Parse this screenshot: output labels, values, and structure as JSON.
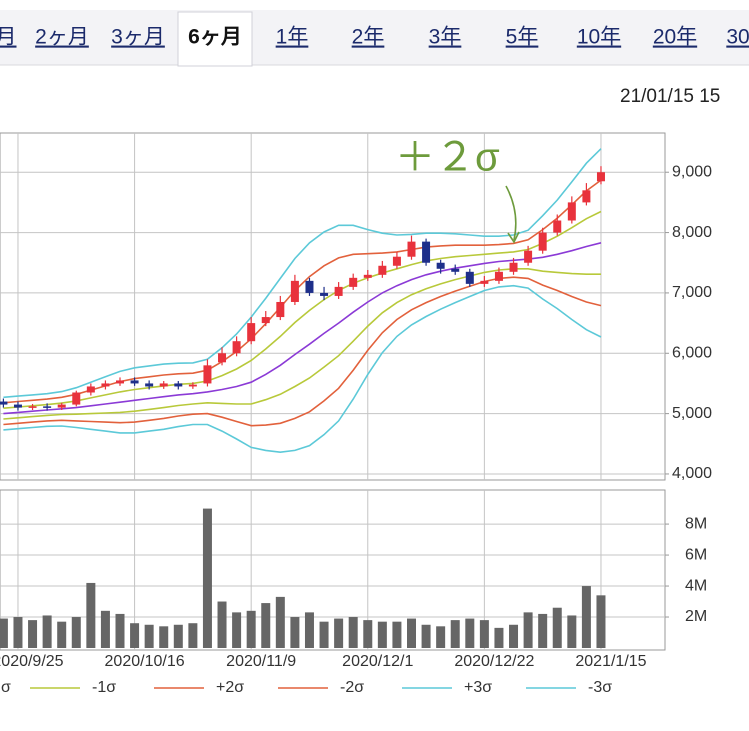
{
  "tabs": {
    "items": [
      "月",
      "2ヶ月",
      "3ヶ月",
      "6ヶ月",
      "1年",
      "2年",
      "3年",
      "5年",
      "10年",
      "20年",
      "30"
    ],
    "selected": 3
  },
  "timestamp": "21/01/15 15",
  "chart_data": {
    "type": "candlestick",
    "annotation": "＋２σ",
    "categories": [
      null,
      "2020/9/25",
      null,
      null,
      null,
      null,
      null,
      null,
      null,
      "2020/10/16",
      null,
      null,
      null,
      null,
      null,
      null,
      null,
      "2020/11/9",
      null,
      null,
      null,
      null,
      null,
      null,
      null,
      "2020/12/1",
      null,
      null,
      null,
      null,
      null,
      null,
      null,
      "2020/12/22",
      null,
      null,
      null,
      null,
      null,
      null,
      null,
      "2021/1/15"
    ],
    "open": [
      5200,
      5150,
      5100,
      5120,
      5100,
      5150,
      5350,
      5450,
      5500,
      5550,
      5500,
      5450,
      5500,
      5450,
      5500,
      5850,
      6000,
      6200,
      6500,
      6600,
      6850,
      7200,
      7000,
      6950,
      7100,
      7250,
      7300,
      7450,
      7600,
      7850,
      7500,
      7400,
      7350,
      7150,
      7200,
      7350,
      7500,
      7700,
      8000,
      8200,
      8500,
      8850
    ],
    "high": [
      5250,
      5200,
      5160,
      5170,
      5180,
      5380,
      5500,
      5550,
      5600,
      5600,
      5550,
      5540,
      5540,
      5520,
      5900,
      6100,
      6280,
      6600,
      6700,
      6950,
      7300,
      7250,
      7100,
      7180,
      7320,
      7380,
      7530,
      7680,
      7950,
      7900,
      7550,
      7470,
      7400,
      7280,
      7420,
      7580,
      7780,
      8080,
      8300,
      8600,
      8820,
      9100
    ],
    "low": [
      5100,
      5050,
      5060,
      5050,
      5060,
      5120,
      5300,
      5400,
      5460,
      5460,
      5400,
      5410,
      5400,
      5410,
      5450,
      5800,
      5950,
      6150,
      6450,
      6550,
      6800,
      6950,
      6880,
      6900,
      7050,
      7200,
      7250,
      7400,
      7550,
      7450,
      7320,
      7300,
      7100,
      7100,
      7150,
      7300,
      7450,
      7650,
      7950,
      8150,
      8450,
      8800
    ],
    "close": [
      5150,
      5100,
      5120,
      5100,
      5150,
      5350,
      5450,
      5500,
      5550,
      5500,
      5450,
      5500,
      5450,
      5480,
      5800,
      6000,
      6200,
      6500,
      6600,
      6850,
      7200,
      7000,
      6950,
      7100,
      7250,
      7300,
      7450,
      7600,
      7850,
      7500,
      7400,
      7350,
      7150,
      7200,
      7350,
      7500,
      7700,
      8000,
      8200,
      8500,
      8700,
      9000
    ],
    "up_color": "#e8323c",
    "down_color": "#1e2f8a",
    "ylim": [
      3900,
      9650
    ],
    "yticks": [
      {
        "value": 4000,
        "label": "4,000"
      },
      {
        "value": 5000,
        "label": "5,000"
      },
      {
        "value": 6000,
        "label": "6,000"
      },
      {
        "value": 7000,
        "label": "7,000"
      },
      {
        "value": 8000,
        "label": "8,000"
      },
      {
        "value": 9000,
        "label": "9,000"
      }
    ],
    "grid": true,
    "legend": "bottom",
    "series": [
      {
        "color": "#8b3ad6",
        "values": [
          5000,
          5020,
          5040,
          5060,
          5080,
          5100,
          5130,
          5160,
          5190,
          5220,
          5250,
          5280,
          5310,
          5330,
          5360,
          5400,
          5450,
          5520,
          5650,
          5800,
          5980,
          6150,
          6330,
          6500,
          6680,
          6850,
          7000,
          7120,
          7220,
          7300,
          7360,
          7410,
          7450,
          7490,
          7520,
          7540,
          7560,
          7590,
          7640,
          7700,
          7770,
          7830
        ]
      },
      {
        "name": "σ",
        "color": "#b8c93a",
        "values": [
          5090,
          5110,
          5130,
          5150,
          5175,
          5210,
          5260,
          5310,
          5360,
          5400,
          5430,
          5460,
          5485,
          5500,
          5540,
          5630,
          5740,
          5880,
          6070,
          6280,
          6510,
          6710,
          6890,
          7040,
          7160,
          7250,
          7330,
          7400,
          7470,
          7530,
          7570,
          7600,
          7620,
          7640,
          7660,
          7680,
          7720,
          7820,
          7940,
          8080,
          8230,
          8350
        ]
      },
      {
        "name": "-1σ",
        "color": "#b8c93a",
        "values": [
          4910,
          4930,
          4950,
          4970,
          4985,
          4990,
          5000,
          5010,
          5020,
          5040,
          5070,
          5100,
          5135,
          5160,
          5180,
          5170,
          5160,
          5160,
          5230,
          5320,
          5450,
          5590,
          5770,
          5960,
          6200,
          6450,
          6670,
          6840,
          6970,
          7070,
          7150,
          7220,
          7280,
          7340,
          7380,
          7400,
          7400,
          7360,
          7340,
          7320,
          7310,
          7310
        ]
      },
      {
        "name": "+2σ",
        "color": "#e2613c",
        "values": [
          5180,
          5200,
          5220,
          5240,
          5270,
          5320,
          5390,
          5460,
          5530,
          5580,
          5610,
          5640,
          5660,
          5670,
          5720,
          5860,
          6030,
          6240,
          6490,
          6760,
          7040,
          7270,
          7450,
          7580,
          7640,
          7650,
          7660,
          7680,
          7720,
          7760,
          7780,
          7790,
          7790,
          7790,
          7800,
          7820,
          7880,
          8050,
          8240,
          8460,
          8690,
          8870
        ]
      },
      {
        "name": "-2σ",
        "color": "#e2613c",
        "values": [
          4820,
          4840,
          4860,
          4880,
          4890,
          4880,
          4870,
          4860,
          4850,
          4860,
          4890,
          4920,
          4960,
          4990,
          5000,
          4940,
          4870,
          4800,
          4810,
          4840,
          4920,
          5030,
          5210,
          5420,
          5720,
          6050,
          6340,
          6560,
          6720,
          6840,
          6940,
          7030,
          7110,
          7190,
          7240,
          7260,
          7240,
          7130,
          7040,
          6940,
          6850,
          6790
        ]
      },
      {
        "name": "+3σ",
        "color": "#5cc9d8",
        "values": [
          5270,
          5290,
          5310,
          5330,
          5365,
          5430,
          5520,
          5610,
          5700,
          5760,
          5790,
          5820,
          5835,
          5840,
          5900,
          6090,
          6320,
          6600,
          6910,
          7240,
          7570,
          7830,
          8010,
          8120,
          8120,
          8050,
          7990,
          7960,
          7970,
          7990,
          7990,
          7980,
          7960,
          7940,
          7940,
          7960,
          8040,
          8280,
          8540,
          8840,
          9150,
          9390
        ]
      },
      {
        "name": "-3σ",
        "color": "#5cc9d8",
        "values": [
          4730,
          4750,
          4770,
          4790,
          4795,
          4770,
          4740,
          4710,
          4680,
          4680,
          4710,
          4740,
          4785,
          4820,
          4820,
          4710,
          4580,
          4440,
          4390,
          4360,
          4390,
          4470,
          4650,
          4880,
          5240,
          5650,
          6010,
          6280,
          6470,
          6610,
          6730,
          6840,
          6940,
          7040,
          7100,
          7120,
          7080,
          6900,
          6740,
          6560,
          6390,
          6270
        ]
      }
    ],
    "volume": {
      "type": "bar",
      "color": "#666666",
      "values": [
        1900000,
        2000000,
        1800000,
        2100000,
        1700000,
        2000000,
        4200000,
        2400000,
        2200000,
        1600000,
        1500000,
        1400000,
        1500000,
        1600000,
        9000000,
        3000000,
        2300000,
        2400000,
        2900000,
        3300000,
        2000000,
        2300000,
        1700000,
        1900000,
        2000000,
        1800000,
        1700000,
        1700000,
        1900000,
        1500000,
        1400000,
        1800000,
        1900000,
        1800000,
        1300000,
        1500000,
        2300000,
        2200000,
        2600000,
        2100000,
        4000000,
        3400000
      ],
      "ylim": [
        0,
        10200000
      ],
      "yticks": [
        {
          "value": 2000000,
          "label": "2M"
        },
        {
          "value": 4000000,
          "label": "4M"
        },
        {
          "value": 6000000,
          "label": "6M"
        },
        {
          "value": 8000000,
          "label": "8M"
        }
      ]
    }
  }
}
